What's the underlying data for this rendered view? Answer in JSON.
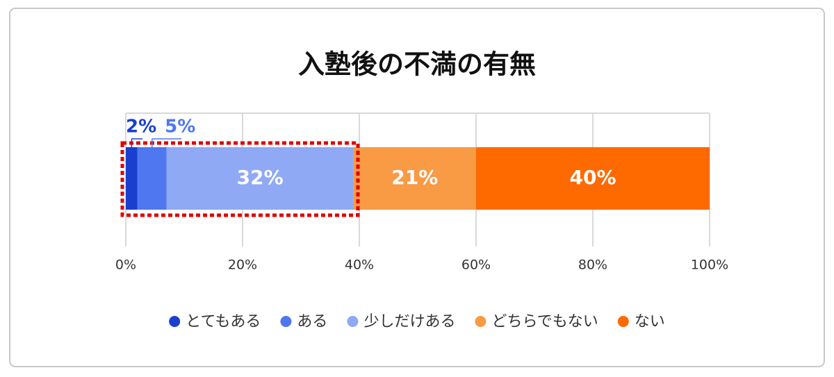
{
  "chart_data": {
    "type": "bar",
    "orientation": "horizontal",
    "stacked": true,
    "title": "入塾後の不満の有無",
    "categories": [
      null
    ],
    "series": [
      {
        "name": "とてもある",
        "color": "#1a3fcf",
        "values": [
          2
        ],
        "value_labels": [
          "2%"
        ]
      },
      {
        "name": "ある",
        "color": "#4f77f0",
        "values": [
          5
        ],
        "value_labels": [
          "5%"
        ]
      },
      {
        "name": "少しだけある",
        "color": "#8fa9f5",
        "values": [
          32
        ],
        "value_labels": [
          "32%"
        ]
      },
      {
        "name": "どちらでもない",
        "color": "#f99a45",
        "values": [
          21
        ],
        "value_labels": [
          "21%"
        ]
      },
      {
        "name": "ない",
        "color": "#ff6a00",
        "values": [
          40
        ],
        "value_labels": [
          "40%"
        ]
      }
    ],
    "xlim": [
      0,
      100
    ],
    "xticks": [
      {
        "value": 0,
        "label": "0%"
      },
      {
        "value": 20,
        "label": "20%"
      },
      {
        "value": 40,
        "label": "40%"
      },
      {
        "value": 60,
        "label": "60%"
      },
      {
        "value": 80,
        "label": "80%"
      },
      {
        "value": 100,
        "label": "100%"
      }
    ],
    "grid": true,
    "legend": "bottom"
  }
}
